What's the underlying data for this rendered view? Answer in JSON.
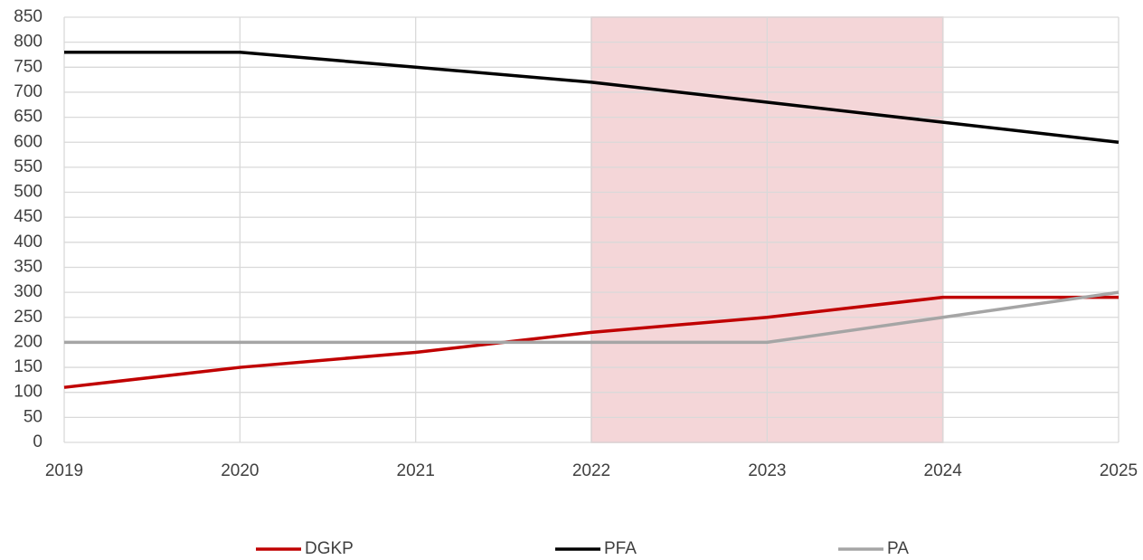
{
  "chart_data": {
    "type": "line",
    "x": [
      2019,
      2020,
      2021,
      2022,
      2023,
      2024,
      2025
    ],
    "xlim": [
      2019,
      2025
    ],
    "xticks": [
      2019,
      2020,
      2021,
      2022,
      2023,
      2024,
      2025
    ],
    "ylim": [
      0,
      850
    ],
    "yticks": [
      0,
      50,
      100,
      150,
      200,
      250,
      300,
      350,
      400,
      450,
      500,
      550,
      600,
      650,
      700,
      750,
      800,
      850
    ],
    "grid": true,
    "legend": "bottom",
    "highlight": {
      "from": 2022,
      "to": 2024,
      "color": "#f4d6d8"
    },
    "series": [
      {
        "name": "DGKP",
        "color": "#c00000",
        "values": [
          110,
          150,
          180,
          220,
          250,
          290,
          290
        ]
      },
      {
        "name": "PFA",
        "color": "#000000",
        "values": [
          780,
          780,
          750,
          720,
          680,
          640,
          600
        ]
      },
      {
        "name": "PA",
        "color": "#a5a5a5",
        "values": [
          200,
          200,
          200,
          200,
          200,
          250,
          300
        ]
      }
    ]
  }
}
